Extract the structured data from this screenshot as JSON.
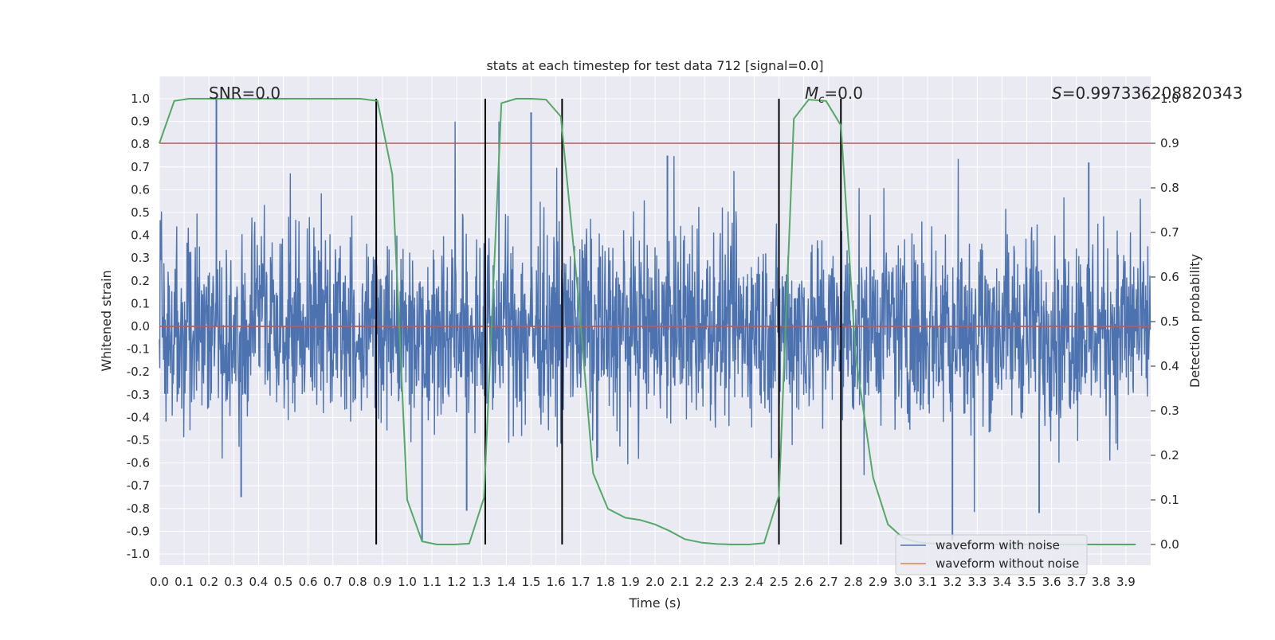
{
  "chart_data": {
    "type": "line",
    "title": "stats at each timestep for test data 712 [signal=0.0]",
    "xlabel": "Time (s)",
    "ylabel": "Whitened strain",
    "y2label": "Detection probability",
    "xlim": [
      0.0,
      4.0
    ],
    "ylim": [
      -1.1,
      1.1
    ],
    "y2lim": [
      -0.05,
      1.05
    ],
    "grid": true,
    "legend_position": "lower right",
    "x_ticks": [
      "0.0",
      "0.1",
      "0.2",
      "0.3",
      "0.4",
      "0.5",
      "0.6",
      "0.7",
      "0.8",
      "0.9",
      "1.0",
      "1.1",
      "1.2",
      "1.3",
      "1.4",
      "1.5",
      "1.6",
      "1.7",
      "1.8",
      "1.9",
      "2.0",
      "2.1",
      "2.2",
      "2.3",
      "2.4",
      "2.5",
      "2.6",
      "2.7",
      "2.8",
      "2.9",
      "3.0",
      "3.1",
      "3.2",
      "3.3",
      "3.4",
      "3.5",
      "3.6",
      "3.7",
      "3.8",
      "3.9"
    ],
    "y_ticks": [
      "1.0",
      "0.9",
      "0.8",
      "0.7",
      "0.6",
      "0.5",
      "0.4",
      "0.3",
      "0.2",
      "0.1",
      "0.0",
      "-0.1",
      "-0.2",
      "-0.3",
      "-0.4",
      "-0.5",
      "-0.6",
      "-0.7",
      "-0.8",
      "-0.9",
      "-1.0"
    ],
    "y2_ticks": [
      "1.0",
      "0.9",
      "0.8",
      "0.7",
      "0.6",
      "0.5",
      "0.4",
      "0.3",
      "0.2",
      "0.1",
      "0.0"
    ],
    "annotations": {
      "snr": "SNR=0.0",
      "mc_symbol": "M",
      "mc_sub": "c",
      "mc_value": "=0.0",
      "s_symbol": "S",
      "s_value": "=0.997336208820343"
    },
    "series": [
      {
        "name": "waveform with noise",
        "color": "#4c72b0",
        "description_values": "dense noise, amplitude mostly within ±0.5, peaks near 1.0 at t=0.23 and -0.94 at t=3.2",
        "peaks": [
          [
            0.23,
            1.0
          ],
          [
            1.5,
            0.94
          ],
          [
            2.05,
            0.75
          ],
          [
            3.2,
            -0.94
          ],
          [
            0.33,
            -0.75
          ],
          [
            1.06,
            -0.94
          ],
          [
            1.24,
            -0.81
          ],
          [
            3.55,
            -0.82
          ],
          [
            3.75,
            0.72
          ]
        ]
      },
      {
        "name": "waveform without noise",
        "color": "#dd8452",
        "values_constant": 0.0
      },
      {
        "color": "#55a868",
        "axis": "right",
        "x": [
          0.0,
          0.06,
          0.12,
          0.19,
          0.25,
          0.31,
          0.38,
          0.44,
          0.5,
          0.56,
          0.62,
          0.69,
          0.75,
          0.81,
          0.88,
          0.94,
          1.0,
          1.06,
          1.12,
          1.19,
          1.25,
          1.31,
          1.38,
          1.44,
          1.5,
          1.56,
          1.62,
          1.69,
          1.75,
          1.81,
          1.88,
          1.94,
          2.0,
          2.06,
          2.12,
          2.19,
          2.25,
          2.31,
          2.38,
          2.44,
          2.5,
          2.56,
          2.62,
          2.69,
          2.75,
          2.81,
          2.88,
          2.94,
          3.0,
          3.06,
          3.12,
          3.19,
          3.25,
          3.31,
          3.38,
          3.44,
          3.5,
          3.56,
          3.62,
          3.69,
          3.75,
          3.81,
          3.88,
          3.94
        ],
        "values": [
          0.9,
          0.995,
          1.0,
          1.0,
          1.0,
          1.0,
          1.0,
          1.0,
          1.0,
          1.0,
          1.0,
          1.0,
          1.0,
          1.0,
          0.995,
          0.83,
          0.1,
          0.007,
          0.0,
          0.0,
          0.002,
          0.105,
          0.99,
          1.0,
          1.0,
          0.998,
          0.96,
          0.56,
          0.16,
          0.08,
          0.06,
          0.055,
          0.045,
          0.03,
          0.012,
          0.004,
          0.001,
          0.0,
          0.0,
          0.003,
          0.11,
          0.955,
          0.998,
          0.995,
          0.94,
          0.42,
          0.15,
          0.045,
          0.015,
          0.005,
          0.002,
          0.001,
          0.0,
          0.0,
          0.0,
          0.0,
          0.0,
          0.0,
          0.0,
          0.0,
          0.0,
          0.0,
          0.0,
          0.0
        ]
      }
    ],
    "hlines": [
      {
        "y2": 0.9,
        "color": "#c44e52"
      },
      {
        "y": 0.0,
        "color": "#c44e52"
      }
    ],
    "vlines": [
      0.875,
      1.315,
      1.625,
      2.5,
      2.75
    ],
    "legend": [
      "waveform with noise",
      "waveform without noise"
    ]
  }
}
